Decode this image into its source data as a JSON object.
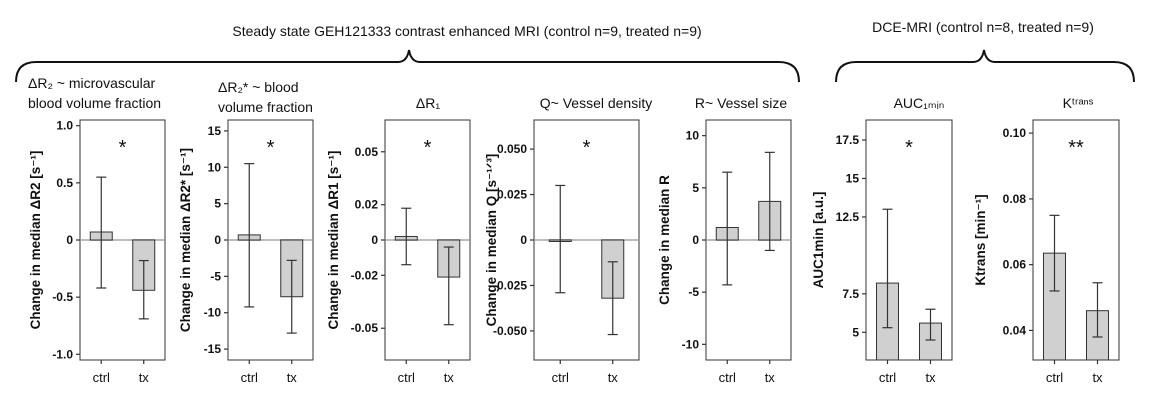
{
  "headers": {
    "steady_state": "Steady state GEH121333  contrast enhanced MRI (control n=9, treated n=9)",
    "dce": "DCE-MRI (control n=8, treated n=9)"
  },
  "chart_data": [
    {
      "type": "bar",
      "title": [
        "ΔR₂ ~ microvascular",
        "blood volume fraction"
      ],
      "ylabel": "Change in median ΔR2  [s⁻¹]",
      "categories": [
        "ctrl",
        "tx"
      ],
      "values": [
        0.07,
        -0.44
      ],
      "err_low": [
        -0.42,
        -0.69
      ],
      "err_high": [
        0.55,
        -0.18
      ],
      "ylim": [
        -1.05,
        1.05
      ],
      "yticks": [
        1.0,
        0.5,
        0,
        -0.5,
        -1.0
      ],
      "ytick_labels": [
        "1.0",
        "0.5",
        "0",
        "-0.5",
        "-1.0"
      ],
      "zero_line": true,
      "significance": "*"
    },
    {
      "type": "bar",
      "title": [
        "ΔR₂* ~ blood",
        "volume fraction"
      ],
      "ylabel": "Change in median ΔR2* [s⁻¹]",
      "categories": [
        "ctrl",
        "tx"
      ],
      "values": [
        0.7,
        -7.8
      ],
      "err_low": [
        -9.2,
        -12.8
      ],
      "err_high": [
        10.5,
        -2.8
      ],
      "ylim": [
        -16.5,
        16.5
      ],
      "yticks": [
        15,
        10,
        5,
        0,
        -5,
        -10,
        -15
      ],
      "ytick_labels": [
        "15",
        "10",
        "5",
        "0",
        "-5",
        "-10",
        "-15"
      ],
      "zero_line": true,
      "significance": "*"
    },
    {
      "type": "bar",
      "title": [
        "ΔR₁"
      ],
      "ylabel": "Change in median ΔR1 [s⁻¹]",
      "categories": [
        "ctrl",
        "tx"
      ],
      "values": [
        0.002,
        -0.021
      ],
      "err_low": [
        -0.014,
        -0.048
      ],
      "err_high": [
        0.018,
        -0.004
      ],
      "ylim": [
        -0.068,
        0.068
      ],
      "yticks": [
        0.05,
        0.02,
        0,
        -0.02,
        -0.05
      ],
      "ytick_labels": [
        "0.05",
        "0.02",
        "0",
        "-0.02",
        "-0.05"
      ],
      "zero_line": true,
      "significance": "*"
    },
    {
      "type": "bar",
      "title": [
        "Q~ Vessel density"
      ],
      "ylabel": "Change in median Q [s⁻¹ᐟ³]",
      "categories": [
        "ctrl",
        "tx"
      ],
      "values": [
        0.0,
        -0.032
      ],
      "err_low": [
        -0.029,
        -0.052
      ],
      "err_high": [
        0.03,
        -0.012
      ],
      "ylim": [
        -0.066,
        0.066
      ],
      "yticks": [
        0.05,
        0.025,
        0,
        -0.025,
        -0.05
      ],
      "ytick_labels": [
        "0.050",
        "0.025",
        "0",
        "-0.025",
        "-0.050"
      ],
      "zero_line": true,
      "significance": "*"
    },
    {
      "type": "bar",
      "title": [
        "R~ Vessel size"
      ],
      "ylabel": "Change in median R",
      "categories": [
        "ctrl",
        "tx"
      ],
      "values": [
        1.2,
        3.7
      ],
      "err_low": [
        -4.3,
        -1.0
      ],
      "err_high": [
        6.5,
        8.4
      ],
      "ylim": [
        -11.5,
        11.5
      ],
      "yticks": [
        10,
        5,
        0,
        -5,
        -10
      ],
      "ytick_labels": [
        "10",
        "5",
        "0",
        "-5",
        "-10"
      ],
      "zero_line": true,
      "significance": ""
    },
    {
      "type": "bar",
      "title": [
        "AUC₁ₘᵢₙ"
      ],
      "ylabel": "AUC1min [a.u.]",
      "categories": [
        "ctrl",
        "tx"
      ],
      "values": [
        8.2,
        5.6
      ],
      "err_low": [
        5.3,
        4.5
      ],
      "err_high": [
        13.0,
        6.5
      ],
      "ylim": [
        3.2,
        18.8
      ],
      "yticks": [
        17.5,
        15,
        12.5,
        7.5,
        5
      ],
      "ytick_labels": [
        "17.5",
        "15",
        "12.5",
        "7.5",
        "5"
      ],
      "zero_line": false,
      "significance": "*"
    },
    {
      "type": "bar",
      "title": [
        "Kᵗʳᵃⁿˢ"
      ],
      "ylabel": "Ktrans [min⁻¹]",
      "categories": [
        "ctrl",
        "tx"
      ],
      "values": [
        0.0635,
        0.046
      ],
      "err_low": [
        0.052,
        0.038
      ],
      "err_high": [
        0.075,
        0.0545
      ],
      "ylim": [
        0.031,
        0.104
      ],
      "yticks": [
        0.1,
        0.08,
        0.06,
        0.04
      ],
      "ytick_labels": [
        "0.10",
        "0.08",
        "0.06",
        "0.04"
      ],
      "zero_line": false,
      "significance": "**"
    }
  ]
}
